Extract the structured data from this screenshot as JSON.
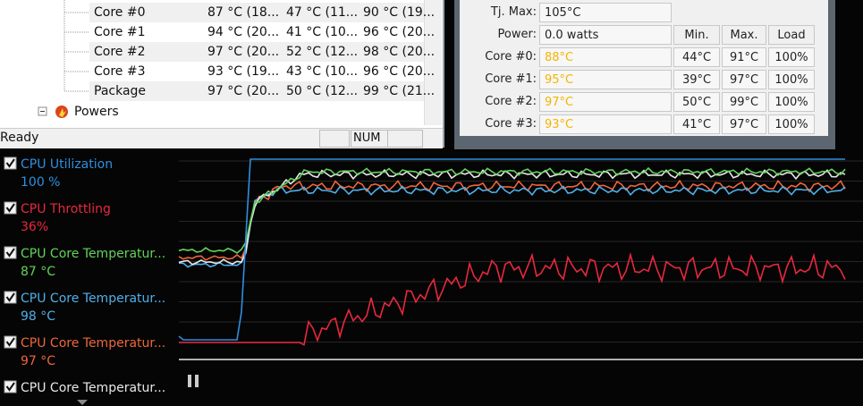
{
  "hwmonitor": {
    "rows": [
      [
        "Core #0",
        "87 °C (18...",
        "47 °C (11...",
        "90 °C (19..."
      ],
      [
        "Core #1",
        "94 °C (20...",
        "41 °C (10...",
        "96 °C (20..."
      ],
      [
        "Core #2",
        "97 °C (20...",
        "52 °C (12...",
        "98 °C (20..."
      ],
      [
        "Core #3",
        "93 °C (19...",
        "43 °C (10...",
        "96 °C (20..."
      ],
      [
        "Package",
        "97 °C (20...",
        "50 °C (12...",
        "99 °C (21..."
      ]
    ],
    "group": "Powers",
    "status": "Ready",
    "indicator": "NUM"
  },
  "coretemp": {
    "tjmax_label": "Tj. Max:",
    "tjmax": "105°C",
    "power_label": "Power:",
    "power": "0.0 watts",
    "headers": [
      "Min.",
      "Max.",
      "Load"
    ],
    "cores": [
      [
        "Core #0:",
        "88°C",
        "44°C",
        "91°C",
        "100%"
      ],
      [
        "Core #1:",
        "95°C",
        "39°C",
        "97°C",
        "100%"
      ],
      [
        "Core #2:",
        "97°C",
        "50°C",
        "99°C",
        "100%"
      ],
      [
        "Core #3:",
        "93°C",
        "41°C",
        "97°C",
        "100%"
      ]
    ]
  },
  "legend": [
    {
      "name": "CPU Utilization",
      "value": "100 %",
      "color": "#2f8fe0"
    },
    {
      "name": "CPU Throttling",
      "value": "36%",
      "color": "#e8283e"
    },
    {
      "name": "CPU Core Temperatur...",
      "value": "87 °C",
      "color": "#62d45a"
    },
    {
      "name": "CPU Core Temperatur...",
      "value": "98 °C",
      "color": "#4fb0ea"
    },
    {
      "name": "CPU Core Temperatur...",
      "value": "97 °C",
      "color": "#f0663a"
    },
    {
      "name": "CPU Core Temperatur...",
      "color": "#e8e8e8"
    }
  ]
}
